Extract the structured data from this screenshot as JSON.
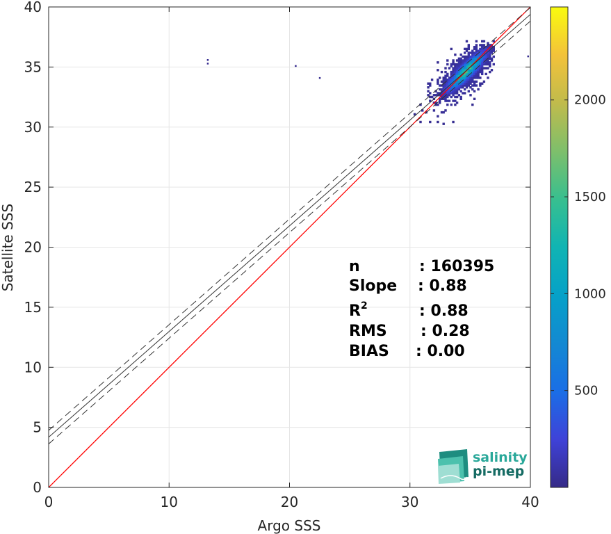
{
  "chart_data": {
    "type": "heatmap",
    "subtype": "2D density scatter with regression lines",
    "xlabel": "Argo SSS",
    "ylabel": "Satellite SSS",
    "xlim": [
      0,
      40
    ],
    "ylim": [
      0,
      40
    ],
    "x_ticks": [
      "0",
      "10",
      "20",
      "30",
      "40"
    ],
    "y_ticks": [
      "0",
      "5",
      "10",
      "15",
      "20",
      "25",
      "30",
      "35",
      "40"
    ],
    "grid": true,
    "colorbar": {
      "colormap": "parula",
      "range": [
        0,
        2480
      ],
      "ticks": [
        "500",
        "1000",
        "1500",
        "2000"
      ]
    },
    "lines": [
      {
        "role": "identity",
        "color": "#ff0000",
        "style": "solid",
        "slope": 1.0,
        "intercept": 0.0
      },
      {
        "role": "fit",
        "color": "#333333",
        "style": "solid",
        "slope": 0.88,
        "intercept": 4.18
      },
      {
        "role": "fit-upper",
        "color": "#333333",
        "style": "dashed",
        "slope": 0.88,
        "intercept": 4.75
      },
      {
        "role": "fit-lower",
        "color": "#333333",
        "style": "dashed",
        "slope": 0.88,
        "intercept": 3.62
      }
    ],
    "density_cluster": {
      "center_argo": 34.6,
      "center_satellite": 34.6,
      "argo_range": [
        29.5,
        37.0
      ],
      "satellite_range": [
        27.8,
        37.2
      ],
      "peak_count": 2480
    },
    "outliers": [
      {
        "argo": 13.2,
        "satellite": 35.3
      },
      {
        "argo": 13.2,
        "satellite": 35.6
      },
      {
        "argo": 20.5,
        "satellite": 35.1
      },
      {
        "argo": 22.5,
        "satellite": 34.1
      },
      {
        "argo": 39.8,
        "satellite": 35.9
      }
    ],
    "stats": {
      "n": {
        "label": "n",
        "value": ": 160395"
      },
      "slope": {
        "label": "Slope",
        "value": ": 0.88"
      },
      "r2": {
        "label": "R",
        "sup": "2",
        "value": ": 0.88"
      },
      "rms": {
        "label": "RMS",
        "value": ": 0.28"
      },
      "bias": {
        "label": "BIAS",
        "value": ": 0.00"
      }
    }
  },
  "logo": {
    "line1": "salinity",
    "line2": "pi-mep",
    "colors": {
      "line1": "#2aa89a",
      "line2": "#156b63",
      "layer_light": "#9fded3",
      "layer_mid": "#4cc1ad",
      "layer_dark": "#1e8d80"
    }
  }
}
